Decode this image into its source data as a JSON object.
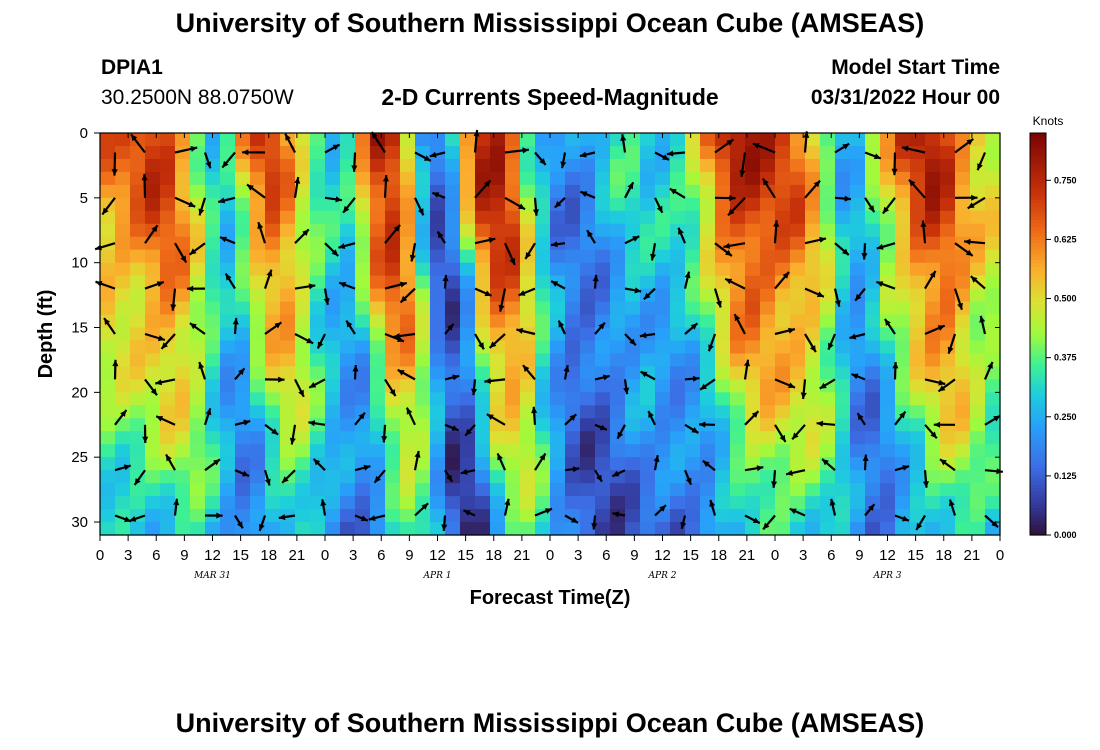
{
  "header": {
    "title": "University of Southern Mississippi Ocean Cube (AMSEAS)",
    "station_id": "DPIA1",
    "coordinates": "30.2500N  88.0750W",
    "plot_title": "2-D Currents Speed-Magnitude",
    "model_start_label": "Model Start Time",
    "model_start_value": "03/31/2022 Hour 00"
  },
  "footer": {
    "title": "University of Southern Mississippi Ocean Cube (AMSEAS)"
  },
  "chart_data": {
    "type": "heatmap",
    "title": "2-D Currents Speed-Magnitude",
    "xlabel": "Forecast Time(Z)",
    "ylabel": "Depth (ft)",
    "x_tick_labels": [
      "0",
      "3",
      "6",
      "9",
      "12",
      "15",
      "18",
      "21",
      "0",
      "3",
      "6",
      "9",
      "12",
      "15",
      "18",
      "21",
      "0",
      "3",
      "6",
      "9",
      "12",
      "15",
      "18",
      "21",
      "0",
      "3",
      "6",
      "9",
      "12",
      "15",
      "18",
      "21",
      "0"
    ],
    "day_labels": [
      "MAR 31",
      "APR 1",
      "APR 2",
      "APR 3"
    ],
    "y_ticks": [
      0,
      5,
      10,
      15,
      20,
      25,
      30
    ],
    "ylim": [
      0,
      31
    ],
    "xlim_hours": [
      0,
      96
    ],
    "colorbar": {
      "unit": "Knots",
      "range": [
        0,
        0.85
      ],
      "tick_values": [
        0.0,
        0.125,
        0.25,
        0.375,
        0.5,
        0.625,
        0.75
      ],
      "tick_labels": [
        "0.000",
        "0.125",
        "0.250",
        "0.375",
        "0.500",
        "0.625",
        "0.750"
      ]
    },
    "time_profile_hours": [
      0,
      3,
      4.5,
      6,
      7.5,
      9,
      10.5,
      12,
      13.5,
      15,
      16.5,
      18,
      19.5,
      21,
      22.5,
      24,
      25.5,
      27,
      28.5,
      30,
      31.5,
      33,
      34.5,
      36,
      37.5,
      39,
      40.5,
      42,
      43.5,
      45,
      48,
      50,
      52,
      54,
      56,
      58,
      60,
      62,
      64,
      66,
      68,
      70,
      72,
      73.5,
      75,
      76.5,
      78,
      79.5,
      81,
      82.5,
      84,
      85.5,
      87,
      88.5,
      90,
      91.5,
      93,
      96
    ],
    "surface_speed_knots": [
      0.62,
      0.66,
      0.72,
      0.74,
      0.68,
      0.55,
      0.42,
      0.3,
      0.35,
      0.55,
      0.68,
      0.72,
      0.62,
      0.48,
      0.38,
      0.32,
      0.3,
      0.48,
      0.72,
      0.8,
      0.72,
      0.45,
      0.15,
      0.12,
      0.28,
      0.62,
      0.78,
      0.8,
      0.72,
      0.45,
      0.2,
      0.18,
      0.22,
      0.3,
      0.35,
      0.3,
      0.32,
      0.38,
      0.55,
      0.72,
      0.78,
      0.75,
      0.72,
      0.7,
      0.62,
      0.5,
      0.3,
      0.25,
      0.32,
      0.48,
      0.55,
      0.68,
      0.75,
      0.78,
      0.72,
      0.6,
      0.55,
      0.5
    ]
  }
}
